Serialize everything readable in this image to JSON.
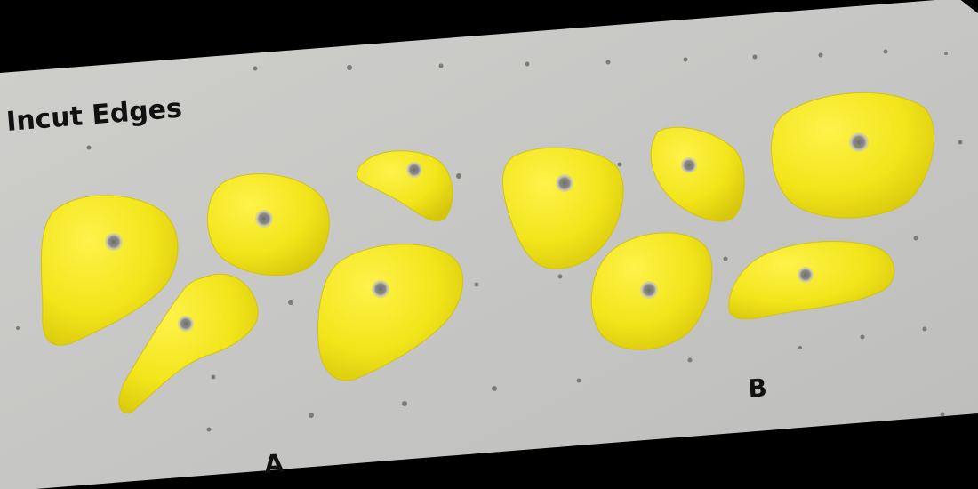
{
  "image": {
    "title": "Incut Edges",
    "set_labels": [
      "A",
      "B"
    ],
    "colors": {
      "frame": "#000000",
      "wall": "#c6c6c4",
      "hold": "#f2e51a",
      "hold_shadow": "#d8c80f",
      "bolt": "#a7a7a7",
      "text": "#111111"
    }
  }
}
